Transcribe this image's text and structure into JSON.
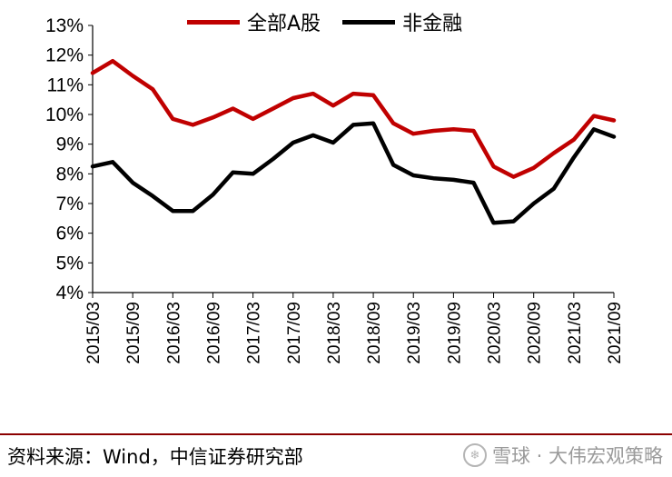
{
  "legend": {
    "series1_label": "全部A股",
    "series2_label": "非金融"
  },
  "source": "资料来源：Wind，中信证券研究部",
  "watermark": "雪球 · 大伟宏观策略",
  "colors": {
    "series1": "#c00000",
    "series2": "#000000",
    "divider": "#8b0000"
  },
  "chart_data": {
    "type": "line",
    "title": "",
    "xlabel": "",
    "ylabel": "",
    "ylim": [
      4,
      13
    ],
    "yticks": [
      "4%",
      "5%",
      "6%",
      "7%",
      "8%",
      "9%",
      "10%",
      "11%",
      "12%",
      "13%"
    ],
    "xticks": [
      "2015/03",
      "2015/09",
      "2016/03",
      "2016/09",
      "2017/03",
      "2017/09",
      "2018/03",
      "2018/09",
      "2019/03",
      "2019/09",
      "2020/03",
      "2020/09",
      "2021/03",
      "2021/09"
    ],
    "x": [
      "2015/03",
      "2015/06",
      "2015/09",
      "2015/12",
      "2016/03",
      "2016/06",
      "2016/09",
      "2016/12",
      "2017/03",
      "2017/06",
      "2017/09",
      "2017/12",
      "2018/03",
      "2018/06",
      "2018/09",
      "2018/12",
      "2019/03",
      "2019/06",
      "2019/09",
      "2019/12",
      "2020/03",
      "2020/06",
      "2020/09",
      "2020/12",
      "2021/03",
      "2021/06",
      "2021/09"
    ],
    "series": [
      {
        "name": "全部A股",
        "values": [
          11.4,
          11.8,
          11.3,
          10.85,
          9.85,
          9.65,
          9.9,
          10.2,
          9.85,
          10.2,
          10.55,
          10.7,
          10.3,
          10.7,
          10.65,
          9.7,
          9.35,
          9.45,
          9.5,
          9.45,
          8.25,
          7.9,
          8.2,
          8.7,
          9.15,
          9.95,
          9.8
        ]
      },
      {
        "name": "非金融",
        "values": [
          8.25,
          8.4,
          7.7,
          7.25,
          6.75,
          6.75,
          7.3,
          8.05,
          8.0,
          8.5,
          9.05,
          9.3,
          9.05,
          9.65,
          9.7,
          8.3,
          7.95,
          7.85,
          7.8,
          7.7,
          6.35,
          6.4,
          7.0,
          7.5,
          8.55,
          9.5,
          9.25
        ]
      }
    ]
  }
}
